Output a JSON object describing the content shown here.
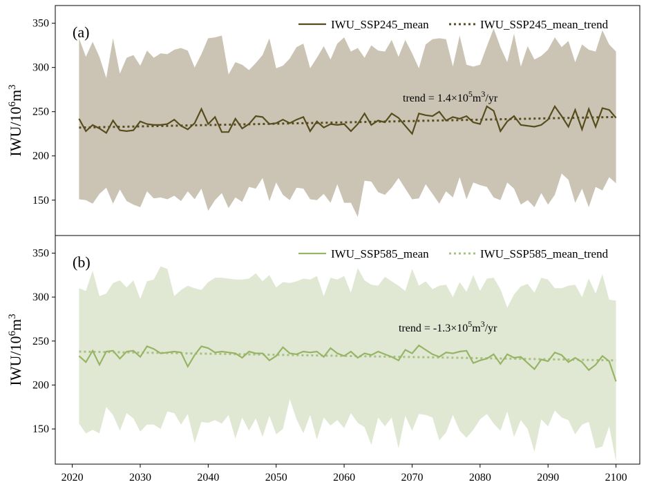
{
  "chart_data": [
    {
      "type": "line",
      "panel_label": "(a)",
      "ylabel_base": "IWU/10",
      "ylabel_exp": "6",
      "ylabel_unit": "m",
      "ylabel_unit_exp": "3",
      "ylim": [
        110,
        370
      ],
      "yticks": [
        150,
        200,
        250,
        300,
        350
      ],
      "legend": {
        "placement": "top-right",
        "mean_label": "IWU_SSP245_mean",
        "trend_label": "IWU_SSP245_mean_trend"
      },
      "trend_annotation": {
        "prefix": "trend = 1.4×10",
        "exp": "5",
        "unit": "m",
        "unit_exp": "3",
        "suffix": "/yr"
      },
      "colors": {
        "band": "#cbc4b5",
        "line": "#574c1d",
        "trend": "#574c1d"
      },
      "x": [
        2021,
        2022,
        2023,
        2024,
        2025,
        2026,
        2027,
        2028,
        2029,
        2030,
        2031,
        2032,
        2033,
        2034,
        2035,
        2036,
        2037,
        2038,
        2039,
        2040,
        2041,
        2042,
        2043,
        2044,
        2045,
        2046,
        2047,
        2048,
        2049,
        2050,
        2051,
        2052,
        2053,
        2054,
        2055,
        2056,
        2057,
        2058,
        2059,
        2060,
        2061,
        2062,
        2063,
        2064,
        2065,
        2066,
        2067,
        2068,
        2069,
        2070,
        2071,
        2072,
        2073,
        2074,
        2075,
        2076,
        2077,
        2078,
        2079,
        2080,
        2081,
        2082,
        2083,
        2084,
        2085,
        2086,
        2087,
        2088,
        2089,
        2090,
        2091,
        2092,
        2093,
        2094,
        2095,
        2096,
        2097,
        2098,
        2099,
        2100
      ],
      "upper": [
        333,
        312,
        329,
        312,
        288,
        333,
        293,
        311,
        314,
        302,
        319,
        311,
        316,
        315,
        320,
        322,
        319,
        300,
        315,
        333,
        334,
        336,
        292,
        306,
        303,
        297,
        305,
        314,
        333,
        299,
        302,
        310,
        323,
        327,
        299,
        311,
        324,
        309,
        327,
        334,
        318,
        322,
        311,
        325,
        319,
        318,
        331,
        312,
        331,
        316,
        299,
        326,
        332,
        333,
        332,
        301,
        336,
        303,
        301,
        303,
        324,
        344,
        323,
        306,
        338,
        301,
        324,
        309,
        313,
        320,
        334,
        323,
        330,
        306,
        326,
        320,
        318,
        342,
        326,
        318
      ],
      "lower": [
        151,
        150,
        146,
        157,
        164,
        146,
        162,
        149,
        145,
        142,
        160,
        152,
        153,
        151,
        155,
        149,
        160,
        151,
        163,
        138,
        150,
        158,
        141,
        153,
        148,
        165,
        163,
        175,
        149,
        170,
        156,
        150,
        164,
        163,
        151,
        150,
        157,
        147,
        168,
        147,
        147,
        131,
        172,
        171,
        159,
        156,
        164,
        175,
        163,
        151,
        152,
        168,
        157,
        146,
        160,
        153,
        176,
        151,
        170,
        167,
        165,
        153,
        150,
        170,
        163,
        145,
        150,
        142,
        158,
        145,
        156,
        180,
        173,
        147,
        163,
        142,
        165,
        161,
        176,
        169
      ],
      "mean": [
        242,
        228,
        235,
        231,
        226,
        240,
        229,
        228,
        229,
        239,
        236,
        235,
        235,
        236,
        241,
        234,
        230,
        237,
        253,
        236,
        244,
        227,
        227,
        242,
        231,
        236,
        245,
        244,
        236,
        237,
        241,
        237,
        241,
        244,
        228,
        239,
        232,
        236,
        235,
        236,
        228,
        236,
        248,
        235,
        240,
        238,
        248,
        243,
        234,
        225,
        248,
        246,
        245,
        250,
        240,
        244,
        242,
        245,
        238,
        236,
        256,
        251,
        228,
        239,
        245,
        235,
        234,
        233,
        235,
        241,
        256,
        245,
        233,
        252,
        230,
        253,
        233,
        254,
        252,
        243
      ],
      "trend": [
        232,
        244
      ]
    },
    {
      "type": "line",
      "panel_label": "(b)",
      "ylabel_base": "IWU/10",
      "ylabel_exp": "6",
      "ylabel_unit": "m",
      "ylabel_unit_exp": "3",
      "ylim": [
        110,
        370
      ],
      "yticks": [
        150,
        200,
        250,
        300,
        350
      ],
      "legend": {
        "placement": "top-right",
        "mean_label": "IWU_SSP585_mean",
        "trend_label": "IWU_SSP585_mean_trend"
      },
      "trend_annotation": {
        "prefix": "trend = -1.3×10",
        "exp": "5",
        "unit": "m",
        "unit_exp": "3",
        "suffix": "/yr"
      },
      "colors": {
        "band": "#e0e8d4",
        "line": "#97b465",
        "trend": "#a8c080"
      },
      "x": [
        2021,
        2022,
        2023,
        2024,
        2025,
        2026,
        2027,
        2028,
        2029,
        2030,
        2031,
        2032,
        2033,
        2034,
        2035,
        2036,
        2037,
        2038,
        2039,
        2040,
        2041,
        2042,
        2043,
        2044,
        2045,
        2046,
        2047,
        2048,
        2049,
        2050,
        2051,
        2052,
        2053,
        2054,
        2055,
        2056,
        2057,
        2058,
        2059,
        2060,
        2061,
        2062,
        2063,
        2064,
        2065,
        2066,
        2067,
        2068,
        2069,
        2070,
        2071,
        2072,
        2073,
        2074,
        2075,
        2076,
        2077,
        2078,
        2079,
        2080,
        2081,
        2082,
        2083,
        2084,
        2085,
        2086,
        2087,
        2088,
        2089,
        2090,
        2091,
        2092,
        2093,
        2094,
        2095,
        2096,
        2097,
        2098,
        2099,
        2100
      ],
      "upper": [
        310,
        307,
        330,
        301,
        304,
        316,
        319,
        311,
        319,
        298,
        318,
        320,
        335,
        332,
        301,
        308,
        313,
        310,
        308,
        317,
        322,
        322,
        321,
        320,
        320,
        321,
        327,
        318,
        325,
        311,
        317,
        316,
        318,
        321,
        320,
        324,
        301,
        322,
        320,
        324,
        305,
        333,
        319,
        314,
        313,
        323,
        318,
        313,
        307,
        332,
        313,
        318,
        309,
        313,
        314,
        300,
        317,
        306,
        325,
        307,
        321,
        322,
        309,
        288,
        303,
        312,
        315,
        305,
        322,
        320,
        310,
        310,
        313,
        314,
        300,
        321,
        304,
        326,
        297,
        296
      ],
      "lower": [
        156,
        145,
        149,
        145,
        175,
        166,
        148,
        168,
        162,
        147,
        155,
        155,
        150,
        170,
        168,
        155,
        167,
        134,
        158,
        157,
        160,
        156,
        166,
        139,
        163,
        148,
        162,
        141,
        165,
        144,
        150,
        184,
        161,
        145,
        166,
        138,
        163,
        154,
        160,
        151,
        168,
        157,
        152,
        132,
        163,
        153,
        163,
        128,
        165,
        148,
        167,
        166,
        163,
        137,
        146,
        166,
        148,
        140,
        149,
        161,
        167,
        156,
        148,
        170,
        141,
        160,
        150,
        124,
        161,
        153,
        171,
        163,
        160,
        144,
        155,
        158,
        128,
        130,
        153,
        113
      ],
      "mean": [
        233,
        226,
        239,
        223,
        238,
        239,
        230,
        238,
        239,
        232,
        244,
        241,
        236,
        237,
        238,
        237,
        221,
        234,
        244,
        242,
        237,
        238,
        237,
        236,
        231,
        238,
        236,
        236,
        228,
        233,
        243,
        236,
        235,
        238,
        237,
        238,
        232,
        242,
        236,
        233,
        238,
        231,
        236,
        234,
        238,
        235,
        232,
        228,
        240,
        236,
        245,
        240,
        235,
        232,
        237,
        236,
        238,
        239,
        225,
        228,
        230,
        235,
        224,
        235,
        231,
        232,
        225,
        218,
        229,
        227,
        237,
        234,
        226,
        231,
        226,
        217,
        223,
        233,
        227,
        204
      ],
      "trend": [
        238,
        228
      ]
    }
  ],
  "x_axis": {
    "ticks": [
      2020,
      2030,
      2040,
      2050,
      2060,
      2070,
      2080,
      2090,
      2100
    ],
    "xlim": [
      2017.5,
      2103.5
    ]
  }
}
